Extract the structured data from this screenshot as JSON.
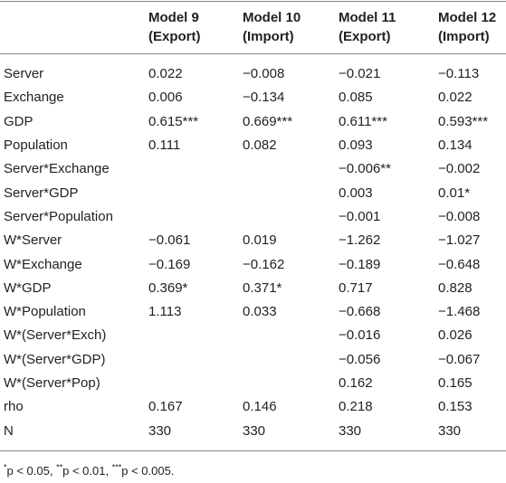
{
  "table": {
    "header": [
      "",
      "Model 9\n(Export)",
      "Model 10\n(Import)",
      "Model 11\n(Export)",
      "Model 12\n(Import)"
    ],
    "rows": [
      [
        "Server",
        "0.022",
        "−0.008",
        "−0.021",
        "−0.113"
      ],
      [
        "Exchange",
        "0.006",
        "−0.134",
        "0.085",
        "0.022"
      ],
      [
        "GDP",
        "0.615***",
        "0.669***",
        "0.611***",
        "0.593***"
      ],
      [
        "Population",
        "0.111",
        "0.082",
        "0.093",
        "0.134"
      ],
      [
        "Server*Exchange",
        "",
        "",
        "−0.006**",
        "−0.002"
      ],
      [
        "Server*GDP",
        "",
        "",
        "0.003",
        "0.01*"
      ],
      [
        "Server*Population",
        "",
        "",
        "−0.001",
        "−0.008"
      ],
      [
        "W*Server",
        "−0.061",
        "0.019",
        "−1.262",
        "−1.027"
      ],
      [
        "W*Exchange",
        "−0.169",
        "−0.162",
        "−0.189",
        "−0.648"
      ],
      [
        "W*GDP",
        "0.369*",
        "0.371*",
        "0.717",
        "0.828"
      ],
      [
        "W*Population",
        "1.113",
        "0.033",
        "−0.668",
        "−1.468"
      ],
      [
        "W*(Server*Exch)",
        "",
        "",
        "−0.016",
        "0.026"
      ],
      [
        "W*(Server*GDP)",
        "",
        "",
        "−0.056",
        "−0.067"
      ],
      [
        "W*(Server*Pop)",
        "",
        "",
        "0.162",
        "0.165"
      ],
      [
        "rho",
        "0.167",
        "0.146",
        "0.218",
        "0.153"
      ],
      [
        "N",
        "330",
        "330",
        "330",
        "330"
      ]
    ]
  },
  "footnote": [
    {
      "stars": "*",
      "text": "p < 0.05,"
    },
    {
      "stars": "**",
      "text": "p < 0.01,"
    },
    {
      "stars": "***",
      "text": "p < 0.005."
    }
  ]
}
